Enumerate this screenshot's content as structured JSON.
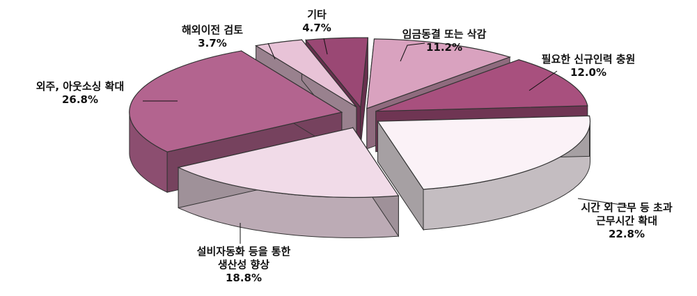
{
  "chart_data": {
    "type": "pie",
    "style": "3d-exploded",
    "legend": "none",
    "slices": [
      {
        "label_lines": [
          "임금동결 또는 삭감"
        ],
        "value_label": "11.2%",
        "value": 11.2,
        "color": "#d9a2bf"
      },
      {
        "label_lines": [
          "필요한 신규인력 충원"
        ],
        "value_label": "12.0%",
        "value": 12.0,
        "color": "#a8507e"
      },
      {
        "label_lines": [
          "시간 외 근무 등 초과",
          "근무시간 확대"
        ],
        "value_label": "22.8%",
        "value": 22.8,
        "color": "#fbf2f7"
      },
      {
        "label_lines": [
          "설비자동화 등을 통한",
          "생산성 향상"
        ],
        "value_label": "18.8%",
        "value": 18.8,
        "color": "#f1dbe8"
      },
      {
        "label_lines": [
          "외주, 아웃소싱 확대"
        ],
        "value_label": "26.8%",
        "value": 26.8,
        "color": "#b3648f"
      },
      {
        "label_lines": [
          "해외이전 검토"
        ],
        "value_label": "3.7%",
        "value": 3.7,
        "color": "#e8c3d7"
      },
      {
        "label_lines": [
          "기타"
        ],
        "value_label": "4.7%",
        "value": 4.7,
        "color": "#9a4874"
      }
    ]
  }
}
